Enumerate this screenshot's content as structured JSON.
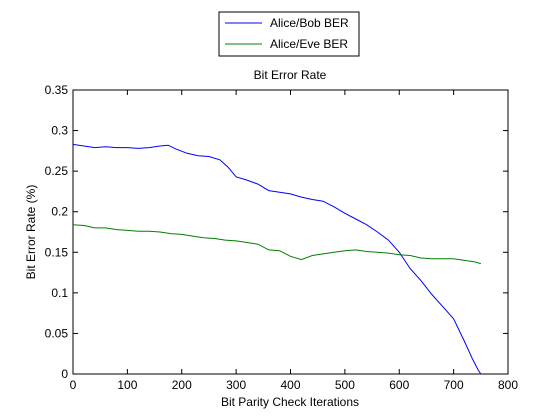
{
  "chart_data": {
    "type": "line",
    "title": "Bit Error Rate",
    "xlabel": "Bit Parity Check Iterations",
    "ylabel": "Bit Error Rate (%)",
    "xlim": [
      0,
      800
    ],
    "ylim": [
      0,
      0.35
    ],
    "xticks": [
      0,
      100,
      200,
      300,
      400,
      500,
      600,
      700,
      800
    ],
    "yticks": [
      0,
      0.05,
      0.1,
      0.15,
      0.2,
      0.25,
      0.3,
      0.35
    ],
    "xtick_labels": [
      "0",
      "100",
      "200",
      "300",
      "400",
      "500",
      "600",
      "700",
      "800"
    ],
    "ytick_labels": [
      "0",
      "0.05",
      "0.1",
      "0.15",
      "0.2",
      "0.25",
      "0.3",
      "0.35"
    ],
    "grid": false,
    "legend_position": "top-center-outside",
    "series": [
      {
        "name": "Alice/Bob BER",
        "color": "#0000ff",
        "points": [
          [
            0,
            0.283
          ],
          [
            20,
            0.281
          ],
          [
            40,
            0.279
          ],
          [
            60,
            0.28
          ],
          [
            80,
            0.279
          ],
          [
            100,
            0.279
          ],
          [
            120,
            0.278
          ],
          [
            140,
            0.279
          ],
          [
            160,
            0.281
          ],
          [
            175,
            0.282
          ],
          [
            190,
            0.277
          ],
          [
            210,
            0.272
          ],
          [
            230,
            0.269
          ],
          [
            250,
            0.268
          ],
          [
            270,
            0.264
          ],
          [
            285,
            0.255
          ],
          [
            300,
            0.243
          ],
          [
            320,
            0.239
          ],
          [
            340,
            0.234
          ],
          [
            360,
            0.226
          ],
          [
            380,
            0.224
          ],
          [
            400,
            0.222
          ],
          [
            420,
            0.218
          ],
          [
            440,
            0.215
          ],
          [
            460,
            0.213
          ],
          [
            480,
            0.206
          ],
          [
            500,
            0.198
          ],
          [
            520,
            0.191
          ],
          [
            540,
            0.184
          ],
          [
            560,
            0.175
          ],
          [
            580,
            0.165
          ],
          [
            600,
            0.15
          ],
          [
            620,
            0.13
          ],
          [
            640,
            0.115
          ],
          [
            660,
            0.098
          ],
          [
            680,
            0.083
          ],
          [
            700,
            0.068
          ],
          [
            720,
            0.04
          ],
          [
            735,
            0.018
          ],
          [
            745,
            0.005
          ],
          [
            750,
            0.0
          ]
        ]
      },
      {
        "name": "Alice/Eve BER",
        "color": "#008000",
        "points": [
          [
            0,
            0.184
          ],
          [
            20,
            0.183
          ],
          [
            40,
            0.18
          ],
          [
            60,
            0.18
          ],
          [
            80,
            0.178
          ],
          [
            100,
            0.177
          ],
          [
            120,
            0.176
          ],
          [
            140,
            0.176
          ],
          [
            160,
            0.175
          ],
          [
            180,
            0.173
          ],
          [
            200,
            0.172
          ],
          [
            220,
            0.17
          ],
          [
            240,
            0.168
          ],
          [
            260,
            0.167
          ],
          [
            280,
            0.165
          ],
          [
            300,
            0.164
          ],
          [
            320,
            0.162
          ],
          [
            340,
            0.16
          ],
          [
            360,
            0.153
          ],
          [
            380,
            0.152
          ],
          [
            400,
            0.145
          ],
          [
            420,
            0.141
          ],
          [
            440,
            0.146
          ],
          [
            460,
            0.148
          ],
          [
            480,
            0.15
          ],
          [
            500,
            0.152
          ],
          [
            520,
            0.153
          ],
          [
            540,
            0.151
          ],
          [
            560,
            0.15
          ],
          [
            580,
            0.149
          ],
          [
            600,
            0.147
          ],
          [
            620,
            0.146
          ],
          [
            640,
            0.143
          ],
          [
            660,
            0.142
          ],
          [
            680,
            0.142
          ],
          [
            700,
            0.142
          ],
          [
            720,
            0.14
          ],
          [
            740,
            0.138
          ],
          [
            750,
            0.136
          ]
        ]
      }
    ]
  }
}
